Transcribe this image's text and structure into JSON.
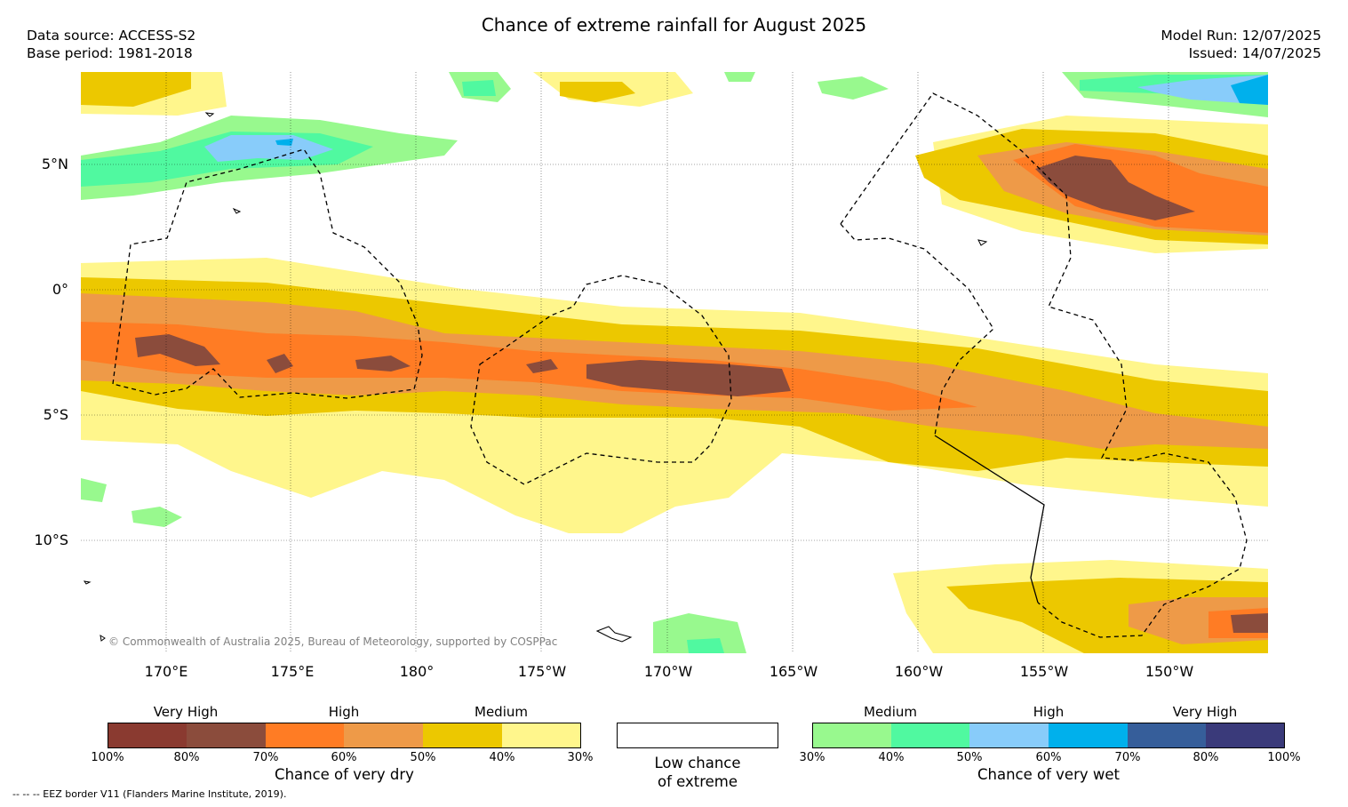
{
  "title": "Chance of extreme rainfall for August 2025",
  "data_source": "Data source: ACCESS-S2",
  "base_period": "Base period: 1981-2018",
  "model_run": "Model Run: 12/07/2025",
  "issued": "Issued: 14/07/2025",
  "lat_labels": [
    "5°N",
    "0°",
    "5°S",
    "10°S"
  ],
  "lon_labels": [
    "170°E",
    "175°E",
    "180°",
    "175°W",
    "170°W",
    "165°W",
    "160°W",
    "155°W",
    "150°W"
  ],
  "copyright": "© Commonwealth of Australia 2025, Bureau of Meteorology, supported by COSPPac",
  "eez_note": "--  --  -- EEZ border V11 (Flanders Marine Institute, 2019).",
  "dry_legend": {
    "title": "Chance of very dry",
    "categories": [
      "Very High",
      "High",
      "Medium"
    ],
    "ticks": [
      "100%",
      "80%",
      "70%",
      "60%",
      "50%",
      "40%",
      "30%"
    ],
    "colors": [
      "#8a3a30",
      "#8b4c3c",
      "#ff7c24",
      "#ee9a48",
      "#ecc800",
      "#fff68c"
    ]
  },
  "low_legend": {
    "line1": "Low chance",
    "line2": "of extreme"
  },
  "wet_legend": {
    "title": "Chance of very wet",
    "categories": [
      "Medium",
      "High",
      "Very High"
    ],
    "ticks": [
      "30%",
      "40%",
      "50%",
      "60%",
      "70%",
      "80%",
      "100%"
    ],
    "colors": [
      "#98f98e",
      "#50f9a0",
      "#88ccfa",
      "#00b0ec",
      "#365e9a",
      "#3a3a7a"
    ]
  }
}
